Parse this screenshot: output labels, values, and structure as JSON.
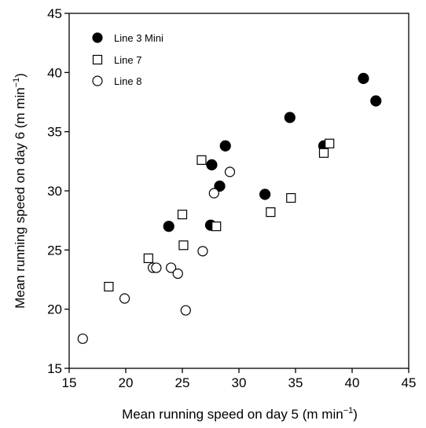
{
  "chart_data": {
    "type": "scatter",
    "xlabel": "Mean running speed on day 5",
    "xunit_pre": "(m min",
    "ylabel": "Mean running speed on day 6",
    "yunit_pre": "(m min",
    "unit_exp": "−1",
    "unit_post": ")",
    "xlim": [
      15,
      45
    ],
    "ylim": [
      15,
      45
    ],
    "xticks": [
      "15",
      "20",
      "25",
      "30",
      "35",
      "40",
      "45"
    ],
    "yticks": [
      "15",
      "20",
      "25",
      "30",
      "35",
      "40",
      "45"
    ],
    "grid": false,
    "legend_position": "top-left",
    "series": [
      {
        "name": "Line 3 Mini",
        "marker": "filled-circle",
        "color": "#000000",
        "points": [
          [
            23.8,
            27.0
          ],
          [
            27.5,
            27.1
          ],
          [
            27.6,
            32.2
          ],
          [
            28.3,
            30.4
          ],
          [
            28.8,
            33.8
          ],
          [
            32.3,
            29.7
          ],
          [
            34.5,
            36.2
          ],
          [
            37.5,
            33.8
          ],
          [
            41.0,
            39.5
          ],
          [
            42.1,
            37.6
          ]
        ]
      },
      {
        "name": "Line 7",
        "marker": "open-square",
        "color": "#000000",
        "points": [
          [
            18.5,
            21.9
          ],
          [
            22.0,
            24.3
          ],
          [
            25.0,
            28.0
          ],
          [
            25.1,
            25.4
          ],
          [
            26.7,
            32.6
          ],
          [
            28.0,
            27.0
          ],
          [
            32.8,
            28.2
          ],
          [
            34.6,
            29.4
          ],
          [
            37.5,
            33.2
          ],
          [
            38.0,
            34.0
          ]
        ]
      },
      {
        "name": "Line 8",
        "marker": "open-circle",
        "color": "#000000",
        "points": [
          [
            16.2,
            17.5
          ],
          [
            19.9,
            20.9
          ],
          [
            22.4,
            23.5
          ],
          [
            22.7,
            23.5
          ],
          [
            24.0,
            23.5
          ],
          [
            24.6,
            23.0
          ],
          [
            25.3,
            19.9
          ],
          [
            26.8,
            24.9
          ],
          [
            27.8,
            29.8
          ],
          [
            29.2,
            31.6
          ]
        ]
      }
    ]
  }
}
